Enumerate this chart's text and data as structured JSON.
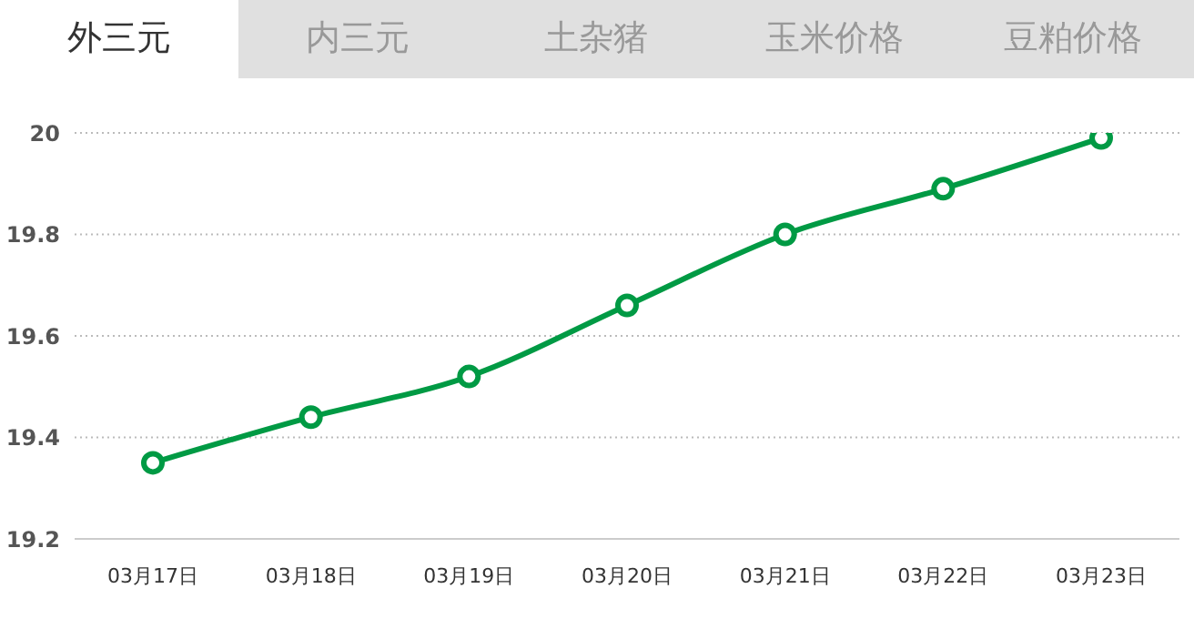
{
  "chart_data": {
    "type": "line",
    "title": "外三元",
    "annotations": [
      "内三元",
      "土杂猪",
      "玉米价格",
      "豆粕价格"
    ],
    "categories": [
      "03月17日",
      "03月18日",
      "03月19日",
      "03月20日",
      "03月21日",
      "03月22日",
      "03月23日"
    ],
    "series": [
      {
        "color": "#009a44",
        "values": [
          19.35,
          19.44,
          19.52,
          19.66,
          19.8,
          19.89,
          19.99
        ]
      }
    ],
    "ylim": [
      19.2,
      20
    ],
    "yticks": [
      19.2,
      19.4,
      19.6,
      19.8,
      20
    ],
    "grid": "y",
    "legend": false,
    "marker": "circle",
    "line_style": "solid"
  }
}
